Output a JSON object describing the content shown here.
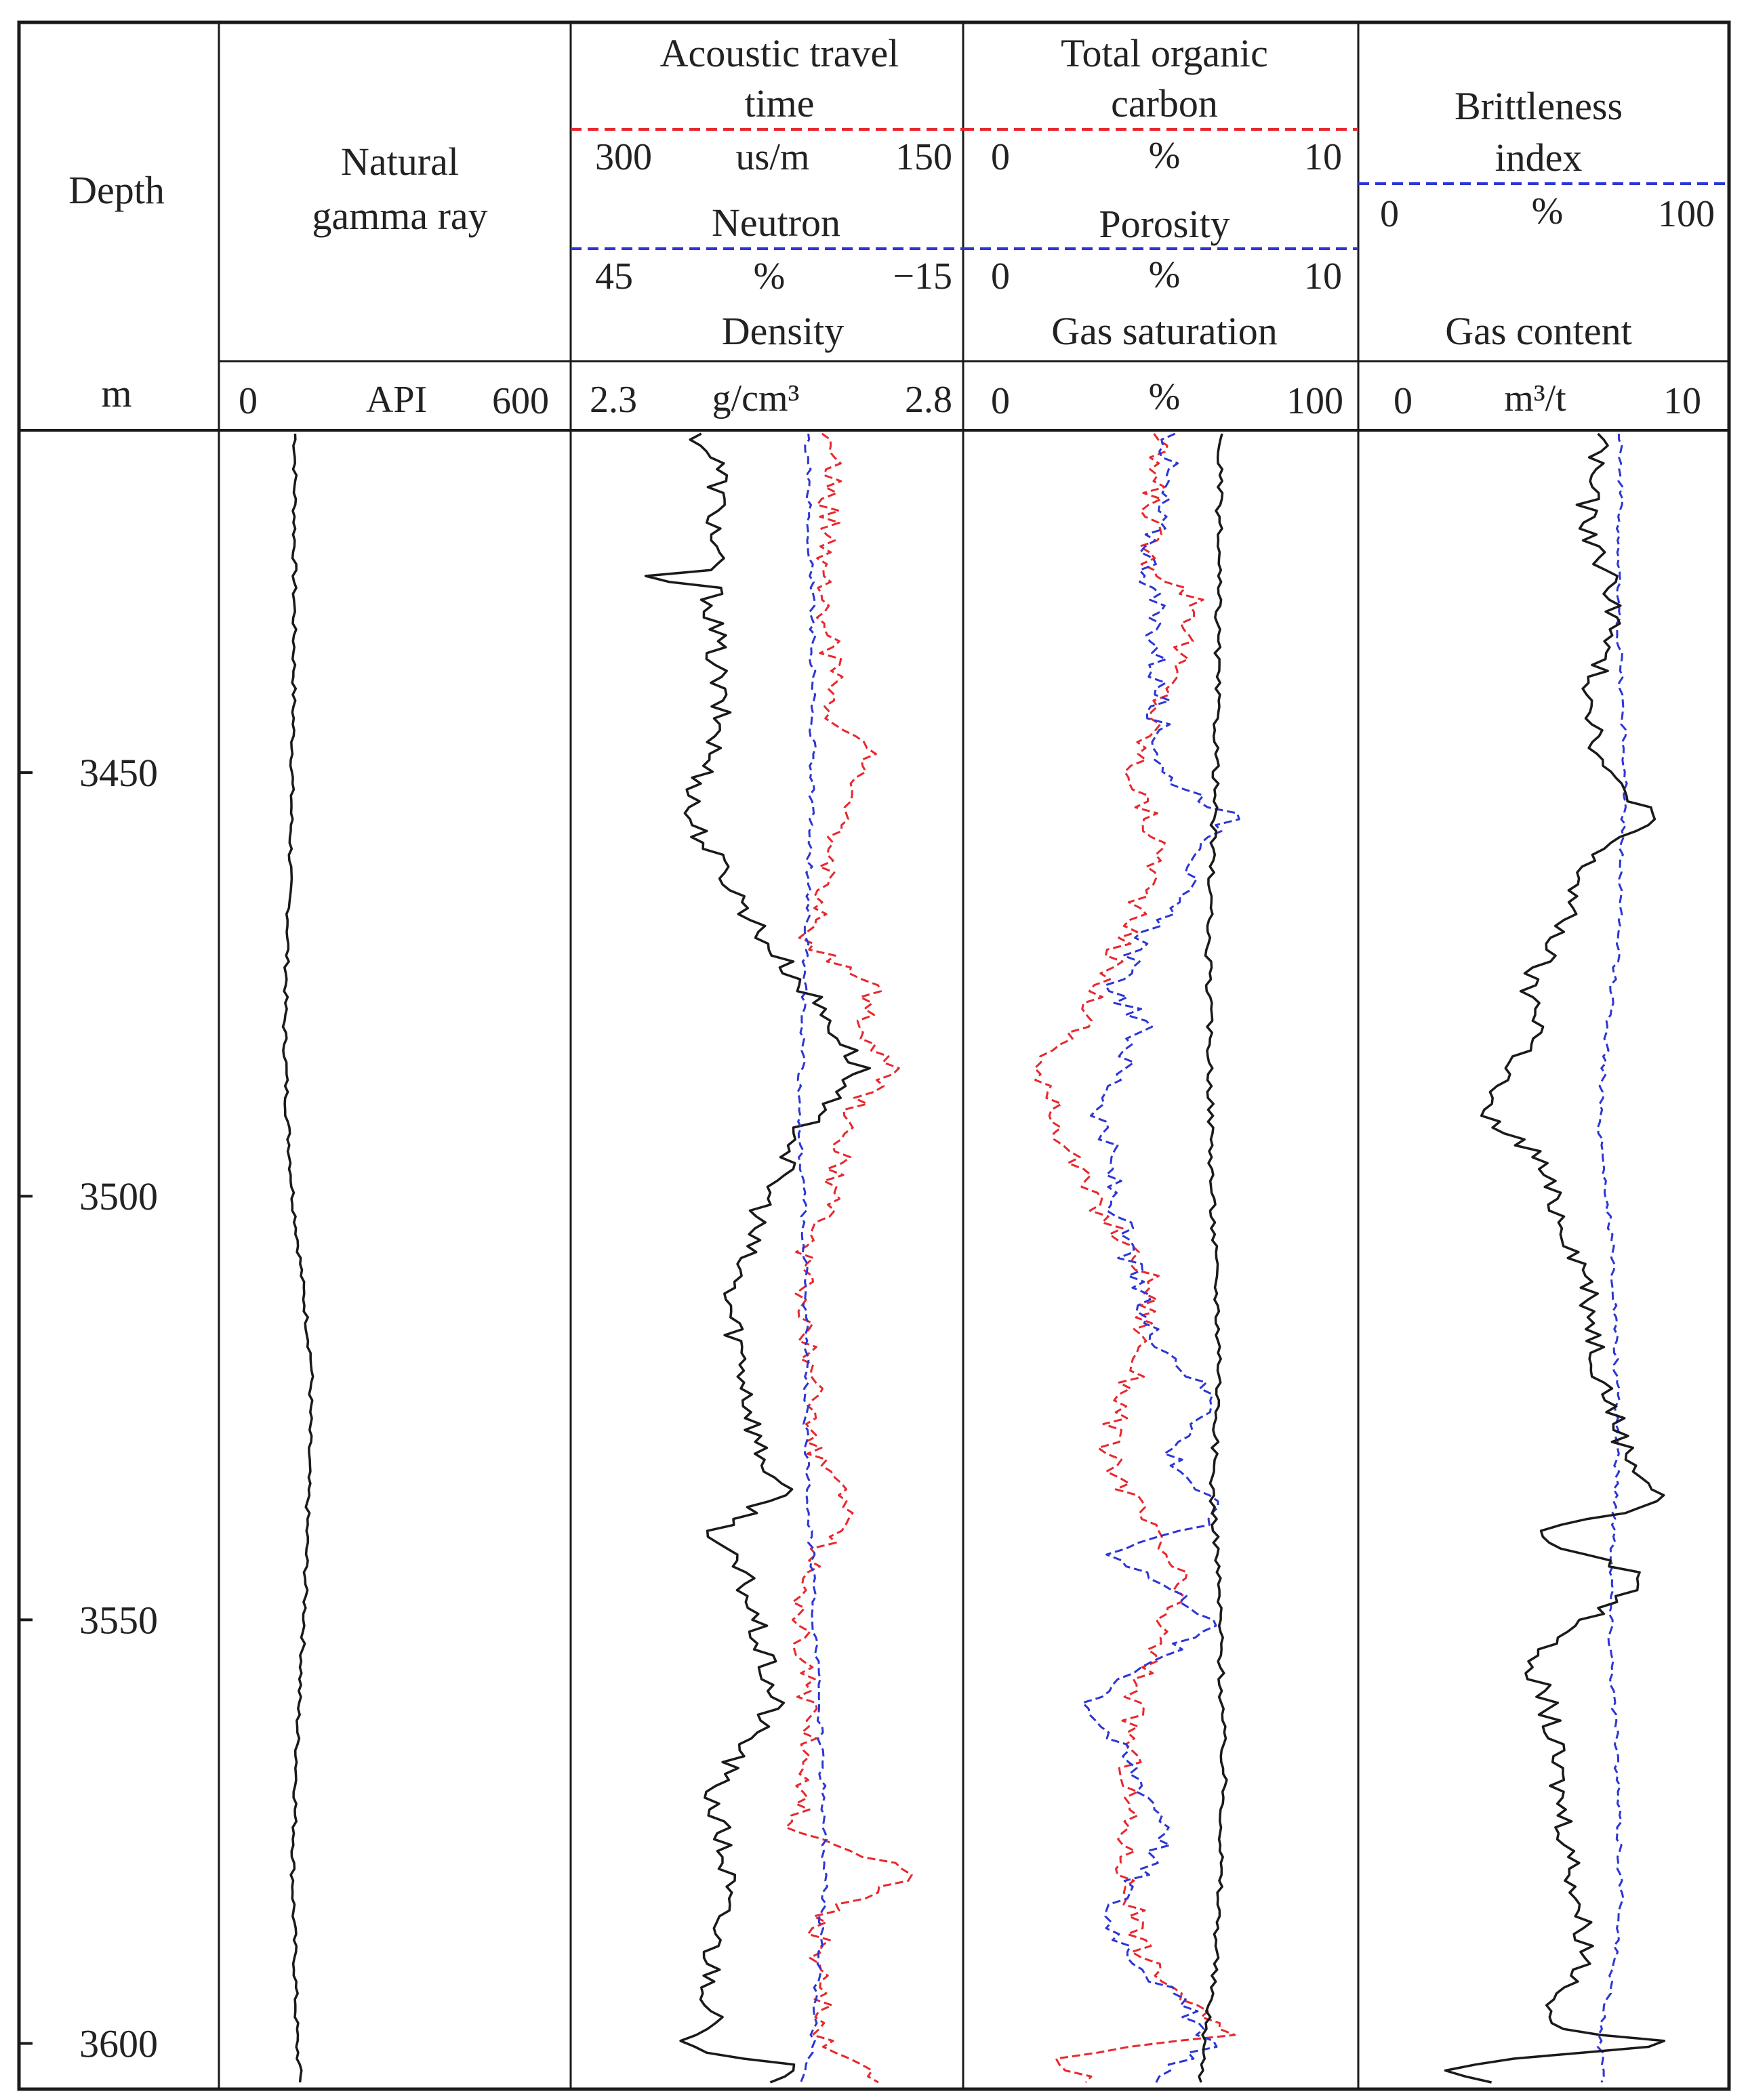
{
  "header": {
    "depth": {
      "title": "Depth",
      "unit": "m"
    },
    "gamma": {
      "title": "Natural gamma ray",
      "scale": {
        "min": "0",
        "unit": "API",
        "max": "600"
      }
    },
    "track2": {
      "ac_title": "Acoustic travel time",
      "ac_scale": {
        "min": "300",
        "unit": "us/m",
        "max": "150"
      },
      "cnl_title": "Neutron",
      "cnl_scale": {
        "min": "45",
        "unit": "%",
        "max": "−15"
      },
      "den_title": "Density",
      "den_scale": {
        "min": "2.3",
        "unit": "g/cm³",
        "max": "2.8"
      }
    },
    "track3": {
      "toc_title": "Total organic carbon",
      "toc_scale": {
        "min": "0",
        "unit": "%",
        "max": "10"
      },
      "por_title": "Porosity",
      "por_scale": {
        "min": "0",
        "unit": "%",
        "max": "10"
      },
      "sg_title": "Gas saturation",
      "sg_scale": {
        "min": "0",
        "unit": "%",
        "max": "100"
      }
    },
    "track4": {
      "bi_title": "Brittleness index",
      "bi_scale": {
        "min": "0",
        "unit": "%",
        "max": "100"
      },
      "gas_title": "Gas content",
      "gas_scale": {
        "min": "0",
        "unit": "m³/t",
        "max": "10"
      }
    }
  },
  "colors": {
    "black": "#1a1a1a",
    "red": "#e8282d",
    "blue": "#2c36d6"
  },
  "chart_data": {
    "type": "line",
    "y_axis": {
      "range": [
        3410,
        3605
      ],
      "ticks": [
        3450,
        3500,
        3550,
        3600
      ]
    },
    "series": [
      {
        "name": "Natural gamma ray",
        "color": "black",
        "style": "solid",
        "xlim": [
          0,
          600
        ],
        "depths": [
          3410,
          3420,
          3440,
          3460,
          3480,
          3490,
          3500,
          3520,
          3535,
          3540,
          3550,
          3560,
          3580,
          3600,
          3605
        ],
        "values": [
          130,
          129,
          128,
          122,
          112,
          116,
          126,
          158,
          152,
          150,
          146,
          136,
          126,
          133,
          140
        ]
      },
      {
        "name": "Density",
        "color": "black",
        "style": "solid",
        "xlim": [
          2.3,
          2.8
        ],
        "depths": [
          3410,
          3414,
          3426,
          3427,
          3428,
          3445,
          3455,
          3470,
          3478,
          3485,
          3490,
          3500,
          3512,
          3520,
          3530,
          3535,
          3540,
          3545,
          3560,
          3570,
          3580,
          3590,
          3598,
          3600,
          3603,
          3605
        ],
        "values": [
          2.46,
          2.49,
          2.48,
          2.38,
          2.48,
          2.49,
          2.45,
          2.55,
          2.62,
          2.67,
          2.61,
          2.55,
          2.5,
          2.52,
          2.54,
          2.57,
          2.48,
          2.52,
          2.56,
          2.48,
          2.5,
          2.48,
          2.48,
          2.42,
          2.6,
          2.56
        ]
      },
      {
        "name": "Acoustic travel time",
        "color": "red",
        "style": "dashed",
        "xlim": [
          300,
          150
        ],
        "depths": [
          3410,
          3430,
          3445,
          3448,
          3452,
          3460,
          3470,
          3475,
          3480,
          3485,
          3490,
          3495,
          3500,
          3508,
          3515,
          3520,
          3530,
          3538,
          3542,
          3548,
          3555,
          3565,
          3575,
          3580,
          3585,
          3590,
          3600,
          3605
        ],
        "values": [
          200,
          203,
          198,
          183,
          196,
          200,
          210,
          184,
          190,
          178,
          194,
          197,
          201,
          212,
          208,
          209,
          206,
          189,
          206,
          215,
          210,
          208,
          215,
          168,
          205,
          205,
          204,
          178
        ]
      },
      {
        "name": "Neutron",
        "color": "blue",
        "style": "dashed",
        "xlim": [
          45,
          -15
        ],
        "depths": [
          3410,
          3430,
          3450,
          3470,
          3490,
          3510,
          3530,
          3545,
          3560,
          3580,
          3600,
          3605
        ],
        "values": [
          9,
          8,
          8,
          9,
          10,
          9,
          9,
          8,
          7,
          6,
          8,
          10
        ]
      },
      {
        "name": "Total organic carbon",
        "color": "red",
        "style": "dashed",
        "xlim": [
          0,
          10
        ],
        "depths": [
          3410,
          3425,
          3430,
          3450,
          3460,
          3470,
          3480,
          3485,
          3490,
          3500,
          3510,
          3520,
          3530,
          3540,
          3545,
          3560,
          3580,
          3590,
          3599,
          3602,
          3605
        ],
        "values": [
          4.9,
          4.7,
          6.0,
          4.3,
          5.0,
          4.0,
          3.0,
          1.8,
          2.3,
          3.2,
          4.8,
          4.4,
          3.6,
          4.8,
          5.5,
          4.3,
          4.1,
          4.6,
          6.6,
          2.0,
          3.5
        ]
      },
      {
        "name": "Porosity",
        "color": "blue",
        "style": "dashed",
        "xlim": [
          0,
          10
        ],
        "depths": [
          3410,
          3425,
          3435,
          3450,
          3455,
          3475,
          3480,
          3490,
          3500,
          3515,
          3525,
          3530,
          3538,
          3542,
          3550,
          3560,
          3575,
          3585,
          3590,
          3600,
          3605
        ],
        "values": [
          5.3,
          4.7,
          4.9,
          5.0,
          6.8,
          3.8,
          4.5,
          3.5,
          3.8,
          4.6,
          6.5,
          5.2,
          6.5,
          3.8,
          6.4,
          3.2,
          5.3,
          3.6,
          4.4,
          6.4,
          4.5
        ]
      },
      {
        "name": "Gas saturation",
        "color": "black",
        "style": "solid",
        "xlim": [
          0,
          100
        ],
        "depths": [
          3410,
          3450,
          3470,
          3500,
          3520,
          3535,
          3540,
          3550,
          3570,
          3590,
          3600,
          3605
        ],
        "values": [
          65,
          64,
          62,
          63,
          65,
          63,
          64,
          65,
          66,
          64,
          61,
          60
        ]
      },
      {
        "name": "Brittleness index",
        "color": "blue",
        "style": "dashed",
        "xlim": [
          0,
          100
        ],
        "depths": [
          3410,
          3430,
          3450,
          3470,
          3490,
          3510,
          3530,
          3550,
          3570,
          3585,
          3600,
          3605
        ],
        "values": [
          71,
          70,
          72,
          70,
          65,
          69,
          70,
          68,
          70,
          71,
          65,
          66
        ]
      },
      {
        "name": "Gas content",
        "color": "black",
        "style": "solid",
        "xlim": [
          0,
          10
        ],
        "depths": [
          3410,
          3420,
          3430,
          3440,
          3450,
          3455,
          3460,
          3470,
          3475,
          3480,
          3490,
          3495,
          3500,
          3510,
          3520,
          3530,
          3536,
          3540,
          3545,
          3550,
          3555,
          3560,
          3570,
          3580,
          3590,
          3598,
          3600,
          3603,
          3605
        ],
        "values": [
          6.6,
          6.1,
          7.0,
          6.3,
          6.6,
          8.0,
          6.2,
          5.3,
          4.5,
          5.0,
          3.2,
          4.8,
          5.2,
          6.2,
          6.5,
          7.2,
          8.2,
          4.6,
          7.8,
          6.2,
          4.7,
          5.1,
          5.4,
          5.8,
          6.2,
          5.0,
          8.5,
          1.8,
          4.4
        ]
      }
    ]
  }
}
